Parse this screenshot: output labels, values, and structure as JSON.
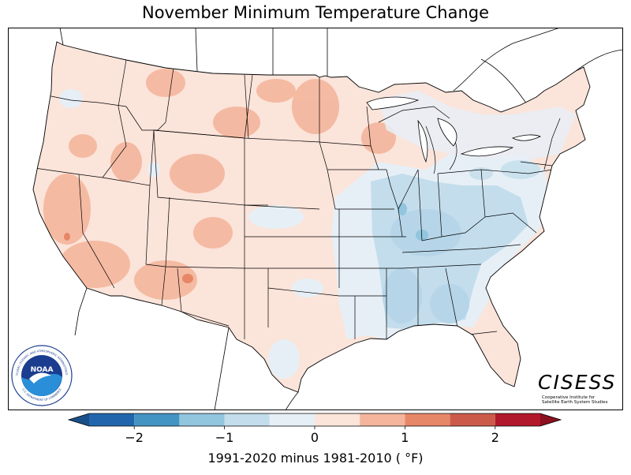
{
  "title": "November Minimum Temperature Change",
  "colorbar": {
    "label": "1991-2020 minus 1981-2010 ( °F)",
    "label_display": "1991-2020 minus 1981-2010 ( °F)",
    "ticks": [
      "−2",
      "−1",
      "0",
      "1",
      "2"
    ],
    "tick_values": [
      -2,
      -1,
      0,
      1,
      2
    ],
    "range": [
      -2.5,
      2.5
    ],
    "bins": [
      -2.5,
      -2.0,
      -1.5,
      -1.0,
      -0.5,
      0,
      0.5,
      1.0,
      1.5,
      2.0,
      2.5
    ],
    "colors": [
      "#2166ac",
      "#4393c3",
      "#92c5de",
      "#c3ddec",
      "#e7eff6",
      "#fbe4da",
      "#f4b59c",
      "#e68767",
      "#cc5a4a",
      "#b2182b"
    ],
    "under_color": "#1b4f8a",
    "over_color": "#8b1020"
  },
  "colors": {
    "warm_light": "#fbe4da",
    "warm_mid": "#f4b59c",
    "cool_light": "#e7eff6",
    "cool_mid": "#b6d5e8"
  },
  "logos": {
    "noaa_text": "NOAA",
    "noaa_ring_top": "NATIONAL OCEANIC AND ATMOSPHERIC ADMINISTRATION",
    "noaa_ring_bottom": "U.S. DEPARTMENT OF COMMERCE",
    "cisess_name": "CISESS",
    "cisess_line1": "Cooperative Institute for",
    "cisess_line2": "Satellite Earth System Studies"
  }
}
